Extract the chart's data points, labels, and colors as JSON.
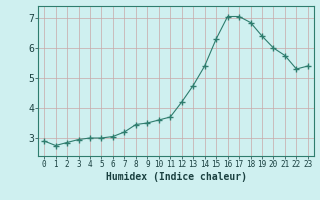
{
  "x": [
    0,
    1,
    2,
    3,
    4,
    5,
    6,
    7,
    8,
    9,
    10,
    11,
    12,
    13,
    14,
    15,
    16,
    17,
    18,
    19,
    20,
    21,
    22,
    23
  ],
  "y": [
    2.9,
    2.75,
    2.85,
    2.95,
    3.0,
    3.0,
    3.05,
    3.2,
    3.45,
    3.5,
    3.6,
    3.7,
    4.2,
    4.75,
    5.4,
    6.3,
    7.05,
    7.05,
    6.85,
    6.4,
    6.0,
    5.75,
    5.3,
    5.4
  ],
  "line_color": "#2e7d6e",
  "marker_color": "#2e7d6e",
  "bg_color": "#cff0f0",
  "grid_color": "#c8a8a8",
  "xlabel": "Humidex (Indice chaleur)",
  "xlim": [
    -0.5,
    23.5
  ],
  "ylim": [
    2.4,
    7.4
  ],
  "yticks": [
    3,
    4,
    5,
    6,
    7
  ],
  "xticks": [
    0,
    1,
    2,
    3,
    4,
    5,
    6,
    7,
    8,
    9,
    10,
    11,
    12,
    13,
    14,
    15,
    16,
    17,
    18,
    19,
    20,
    21,
    22,
    23
  ],
  "xtick_labels": [
    "0",
    "1",
    "2",
    "3",
    "4",
    "5",
    "6",
    "7",
    "8",
    "9",
    "10",
    "11",
    "12",
    "13",
    "14",
    "15",
    "16",
    "17",
    "18",
    "19",
    "20",
    "21",
    "22",
    "23"
  ],
  "axis_color": "#2e7d6e",
  "text_color": "#1a4040",
  "xlabel_fontsize": 7,
  "ytick_fontsize": 7,
  "xtick_fontsize": 5.5
}
